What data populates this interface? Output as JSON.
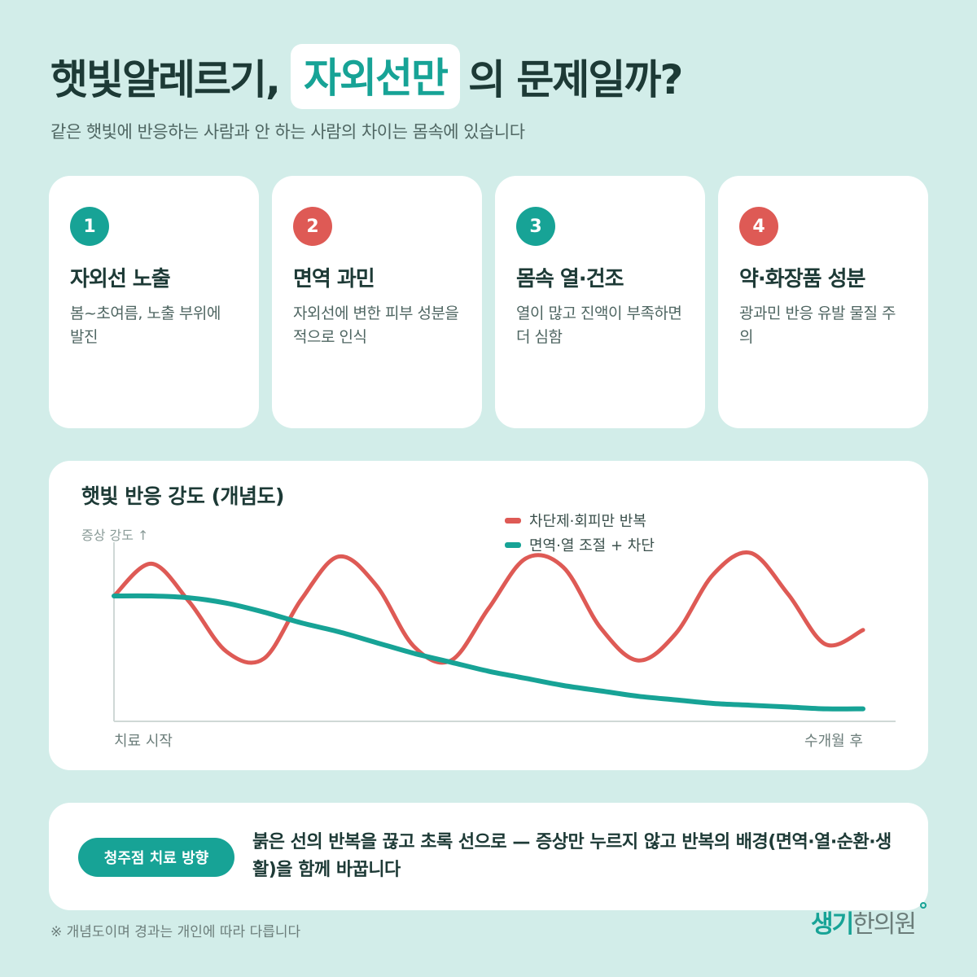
{
  "header": {
    "title_before": "햇빛알레르기,",
    "title_highlight": "자외선만",
    "title_after": "의 문제일까?",
    "subtitle": "같은 햇빛에 반응하는 사람과 안 하는 사람의 차이는 몸속에 있습니다"
  },
  "cards": [
    {
      "number": "1",
      "title": "자외선 노출",
      "desc": "봄~초여름, 노출 부위에 발진",
      "badge_color": "#17a396"
    },
    {
      "number": "2",
      "title": "면역 과민",
      "desc": "자외선에 변한 피부 성분을 적으로 인식",
      "badge_color": "#de5a55"
    },
    {
      "number": "3",
      "title": "몸속 열·건조",
      "desc": "열이 많고 진액이 부족하면 더 심함",
      "badge_color": "#17a396"
    },
    {
      "number": "4",
      "title": "약·화장품 성분",
      "desc": "광과민 반응 유발 물질 주의",
      "badge_color": "#de5a55"
    }
  ],
  "chart_data": {
    "type": "line",
    "title": "햇빛 반응 강도 (개념도)",
    "ylabel": "증상 강도 ↑",
    "x_start_label": "치료 시작",
    "x_end_label": "수개월 후",
    "x": [
      0,
      0.05,
      0.1,
      0.15,
      0.2,
      0.25,
      0.3,
      0.35,
      0.4,
      0.45,
      0.5,
      0.55,
      0.6,
      0.65,
      0.7,
      0.75,
      0.8,
      0.85,
      0.9,
      0.95,
      1.0
    ],
    "ylim": [
      0,
      1
    ],
    "series": [
      {
        "name": "차단제·회피만 반복",
        "color": "#de5a55",
        "values": [
          0.7,
          0.88,
          0.67,
          0.39,
          0.35,
          0.68,
          0.92,
          0.76,
          0.42,
          0.34,
          0.63,
          0.91,
          0.86,
          0.52,
          0.34,
          0.49,
          0.82,
          0.94,
          0.71,
          0.43,
          0.51
        ]
      },
      {
        "name": "면역·열 조절 + 차단",
        "color": "#17a396",
        "values": [
          0.7,
          0.7,
          0.69,
          0.66,
          0.61,
          0.55,
          0.5,
          0.44,
          0.38,
          0.33,
          0.28,
          0.24,
          0.2,
          0.17,
          0.14,
          0.12,
          0.1,
          0.09,
          0.08,
          0.07,
          0.07
        ]
      }
    ],
    "grid": false,
    "legend": "top-right"
  },
  "bottom": {
    "label": "청주점 치료 방향",
    "text": "붉은 선의 반복을 끊고 초록 선으로 — 증상만 누르지 않고 반복의 배경(면역·열·순환·생활)을 함께 바꿉니다"
  },
  "footnote": "※ 개념도이며 경과는 개인에 따라 다릅니다",
  "logo": {
    "part1": "생기",
    "part2": "한의원"
  }
}
